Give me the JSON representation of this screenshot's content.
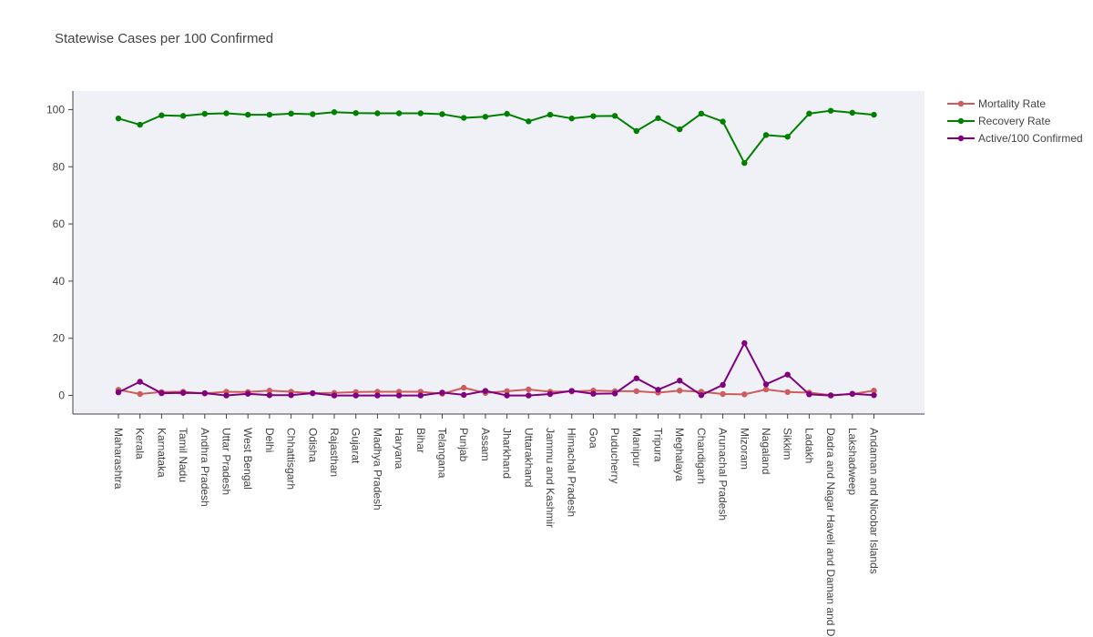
{
  "chart_data": {
    "type": "line",
    "title": "Statewise Cases per 100 Confirmed",
    "xlabel": "",
    "ylabel": "",
    "ylim": [
      -6.5,
      106.5
    ],
    "yticks": [
      0,
      20,
      40,
      60,
      80,
      100
    ],
    "grid": false,
    "legend_position": "top-right",
    "categories": [
      "Maharashtra",
      "Kerala",
      "Karnataka",
      "Tamil Nadu",
      "Andhra Pradesh",
      "Uttar Pradesh",
      "West Bengal",
      "Delhi",
      "Chhattisgarh",
      "Odisha",
      "Rajasthan",
      "Gujarat",
      "Madhya Pradesh",
      "Haryana",
      "Bihar",
      "Telangana",
      "Punjab",
      "Assam",
      "Jharkhand",
      "Uttarakhand",
      "Jammu and Kashmir",
      "Himachal Pradesh",
      "Goa",
      "Puducherry",
      "Manipur",
      "Tripura",
      "Meghalaya",
      "Chandigarh",
      "Arunachal Pradesh",
      "Mizoram",
      "Nagaland",
      "Sikkim",
      "Ladakh",
      "Dadra and Nagar Haveli and Daman and D",
      "Lakshadweep",
      "Andaman and Nicobar Islands"
    ],
    "series": [
      {
        "name": "Mortality Rate",
        "color": "#cd5c5c",
        "values": [
          2.0,
          0.5,
          1.2,
          1.3,
          0.7,
          1.3,
          1.2,
          1.7,
          1.3,
          0.8,
          0.9,
          1.2,
          1.3,
          1.3,
          1.3,
          0.6,
          2.7,
          0.9,
          1.5,
          2.1,
          1.3,
          1.4,
          1.7,
          1.5,
          1.5,
          1.0,
          1.7,
          1.3,
          0.5,
          0.4,
          2.1,
          1.2,
          1.0,
          0.1,
          0.5,
          1.7
        ]
      },
      {
        "name": "Recovery Rate",
        "color": "#008000",
        "values": [
          96.9,
          94.7,
          98.0,
          97.8,
          98.5,
          98.7,
          98.2,
          98.2,
          98.6,
          98.4,
          99.1,
          98.8,
          98.7,
          98.7,
          98.7,
          98.4,
          97.1,
          97.5,
          98.5,
          95.9,
          98.2,
          96.9,
          97.7,
          97.8,
          92.5,
          97.0,
          93.1,
          98.6,
          95.8,
          81.3,
          91.1,
          90.5,
          98.6,
          99.6,
          98.9,
          98.2
        ]
      },
      {
        "name": "Active/100 Confirmed",
        "color": "#800080",
        "values": [
          1.1,
          4.8,
          0.8,
          0.9,
          0.8,
          0.0,
          0.6,
          0.1,
          0.1,
          0.8,
          0.0,
          0.0,
          0.0,
          0.0,
          0.0,
          1.0,
          0.2,
          1.6,
          0.0,
          0.0,
          0.5,
          1.6,
          0.6,
          0.7,
          6.0,
          2.0,
          5.2,
          0.1,
          3.7,
          18.3,
          3.9,
          7.3,
          0.4,
          0.0,
          0.6,
          0.1
        ]
      }
    ]
  }
}
